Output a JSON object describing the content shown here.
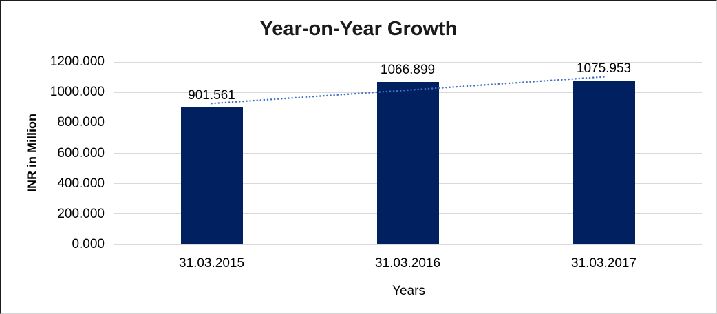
{
  "chart_data": {
    "type": "bar",
    "title": "Year-on-Year Growth",
    "categories": [
      "31.03.2015",
      "31.03.2016",
      "31.03.2017"
    ],
    "values": [
      901.561,
      1066.899,
      1075.953
    ],
    "data_labels": [
      "901.561",
      "1066.899",
      "1075.953"
    ],
    "xlabel": "Years",
    "ylabel": "INR in Million",
    "ylim": [
      0,
      1200
    ],
    "ytick_step": 200,
    "ytick_labels": [
      "0.000",
      "200.000",
      "400.000",
      "600.000",
      "800.000",
      "1000.000",
      "1200.000"
    ],
    "grid": true,
    "legend_position": "none",
    "bar_color": "#012060",
    "gridline_color": "#d9d9d9",
    "trendline": {
      "type": "linear",
      "style": "dotted",
      "color": "#4472C4"
    }
  }
}
